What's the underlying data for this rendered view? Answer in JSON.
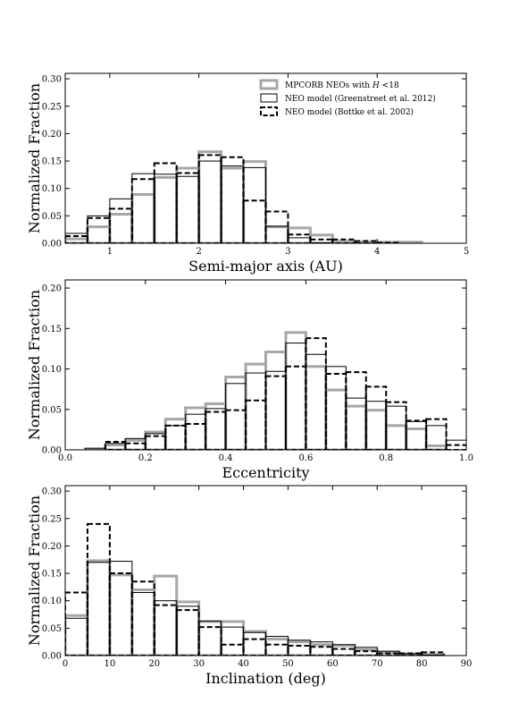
{
  "figure": {
    "colors": {
      "mpc": "#a6a6a6",
      "greenstreet": "#000000",
      "bottke": "#000000"
    }
  },
  "legend": {
    "placement": "top-right",
    "entries": [
      {
        "key": "mpc",
        "prefix": "MPCORB NEOs with ",
        "italic": "H",
        "suffix": " <18"
      },
      {
        "key": "greenstreet",
        "prefix": "NEO model (Greenstreet et al. 2012)",
        "italic": "",
        "suffix": ""
      },
      {
        "key": "bottke",
        "prefix": "NEO model (Bottke et al. 2002)",
        "italic": "",
        "suffix": ""
      }
    ]
  },
  "chart_data": [
    {
      "type": "histogram",
      "xlabel": "Semi-major axis (AU)",
      "ylabel": "Normalized Fraction",
      "xlim": [
        0.5,
        5.0
      ],
      "ylim": [
        0,
        0.31
      ],
      "xticks": [
        1,
        2,
        3,
        4,
        5
      ],
      "xtick_labels": [
        "1",
        "2",
        "3",
        "4",
        "5"
      ],
      "yticks": [
        0.0,
        0.05,
        0.1,
        0.15,
        0.2,
        0.25,
        0.3
      ],
      "ytick_labels": [
        "0.00",
        "0.05",
        "0.10",
        "0.15",
        "0.20",
        "0.25",
        "0.30"
      ],
      "bin_edges": [
        0.5,
        0.75,
        1.0,
        1.25,
        1.5,
        1.75,
        2.0,
        2.25,
        2.5,
        2.75,
        3.0,
        3.25,
        3.5,
        3.75,
        4.0,
        4.25,
        4.5,
        4.75,
        5.0
      ],
      "series": [
        {
          "key": "mpc",
          "style": "gray",
          "values": [
            0.008,
            0.03,
            0.053,
            0.089,
            0.12,
            0.137,
            0.167,
            0.137,
            0.149,
            0.03,
            0.028,
            0.015,
            0.003,
            0.002,
            0.002,
            0.002,
            0.0,
            0.0
          ]
        },
        {
          "key": "greenstreet",
          "style": "solid",
          "values": [
            0.018,
            0.05,
            0.081,
            0.127,
            0.126,
            0.122,
            0.15,
            0.141,
            0.138,
            0.031,
            0.01,
            0.001,
            0.0,
            0.0,
            0.0,
            0.0,
            0.0,
            0.0
          ]
        },
        {
          "key": "bottke",
          "style": "dashed",
          "values": [
            0.013,
            0.046,
            0.063,
            0.117,
            0.146,
            0.128,
            0.161,
            0.157,
            0.078,
            0.058,
            0.016,
            0.007,
            0.007,
            0.004,
            0.001,
            0.0,
            0.0,
            0.0
          ]
        }
      ]
    },
    {
      "type": "histogram",
      "xlabel": "Eccentricity",
      "ylabel": "Normalized Fraction",
      "xlim": [
        0.0,
        1.0
      ],
      "ylim": [
        0,
        0.21
      ],
      "xticks": [
        0.0,
        0.2,
        0.4,
        0.6,
        0.8,
        1.0
      ],
      "xtick_labels": [
        "0.0",
        "0.2",
        "0.4",
        "0.6",
        "0.8",
        "1.0"
      ],
      "yticks": [
        0.0,
        0.05,
        0.1,
        0.15,
        0.2
      ],
      "ytick_labels": [
        "0.00",
        "0.05",
        "0.10",
        "0.15",
        "0.20"
      ],
      "bin_edges": [
        0.0,
        0.05,
        0.1,
        0.15,
        0.2,
        0.25,
        0.3,
        0.35,
        0.4,
        0.45,
        0.5,
        0.55,
        0.6,
        0.65,
        0.7,
        0.75,
        0.8,
        0.85,
        0.9,
        0.95,
        1.0
      ],
      "series": [
        {
          "key": "mpc",
          "style": "gray",
          "values": [
            0.0,
            0.001,
            0.006,
            0.012,
            0.022,
            0.038,
            0.052,
            0.057,
            0.09,
            0.106,
            0.121,
            0.145,
            0.103,
            0.074,
            0.054,
            0.049,
            0.03,
            0.026,
            0.005,
            0.0
          ]
        },
        {
          "key": "greenstreet",
          "style": "solid",
          "values": [
            0.0,
            0.002,
            0.008,
            0.014,
            0.02,
            0.03,
            0.044,
            0.051,
            0.082,
            0.095,
            0.097,
            0.132,
            0.118,
            0.103,
            0.064,
            0.06,
            0.054,
            0.035,
            0.03,
            0.012
          ]
        },
        {
          "key": "bottke",
          "style": "dashed",
          "values": [
            0.0,
            0.0,
            0.01,
            0.008,
            0.017,
            0.03,
            0.032,
            0.047,
            0.049,
            0.061,
            0.091,
            0.103,
            0.138,
            0.094,
            0.096,
            0.078,
            0.059,
            0.036,
            0.038,
            0.006
          ]
        }
      ]
    },
    {
      "type": "histogram",
      "xlabel": "Inclination (deg)",
      "ylabel": "Normalized Fraction",
      "xlim": [
        0,
        90
      ],
      "ylim": [
        0,
        0.31
      ],
      "xticks": [
        0,
        10,
        20,
        30,
        40,
        50,
        60,
        70,
        80,
        90
      ],
      "xtick_labels": [
        "0",
        "10",
        "20",
        "30",
        "40",
        "50",
        "60",
        "70",
        "80",
        "90"
      ],
      "yticks": [
        0.0,
        0.05,
        0.1,
        0.15,
        0.2,
        0.25,
        0.3
      ],
      "ytick_labels": [
        "0.00",
        "0.05",
        "0.10",
        "0.15",
        "0.20",
        "0.25",
        "0.30"
      ],
      "bin_edges": [
        0,
        5,
        10,
        15,
        20,
        25,
        30,
        35,
        40,
        45,
        50,
        55,
        60,
        65,
        70,
        75,
        80,
        85,
        90
      ],
      "series": [
        {
          "key": "mpc",
          "style": "gray",
          "values": [
            0.073,
            0.173,
            0.147,
            0.12,
            0.145,
            0.098,
            0.062,
            0.062,
            0.044,
            0.03,
            0.025,
            0.02,
            0.018,
            0.011,
            0.006,
            0.003,
            0.002,
            0.0
          ]
        },
        {
          "key": "greenstreet",
          "style": "solid",
          "values": [
            0.068,
            0.17,
            0.172,
            0.115,
            0.1,
            0.09,
            0.063,
            0.052,
            0.042,
            0.035,
            0.028,
            0.025,
            0.02,
            0.015,
            0.008,
            0.003,
            0.001,
            0.0
          ]
        },
        {
          "key": "bottke",
          "style": "dashed",
          "values": [
            0.115,
            0.24,
            0.15,
            0.135,
            0.092,
            0.083,
            0.052,
            0.02,
            0.03,
            0.02,
            0.018,
            0.016,
            0.012,
            0.008,
            0.004,
            0.004,
            0.006,
            0.0
          ]
        }
      ]
    }
  ]
}
